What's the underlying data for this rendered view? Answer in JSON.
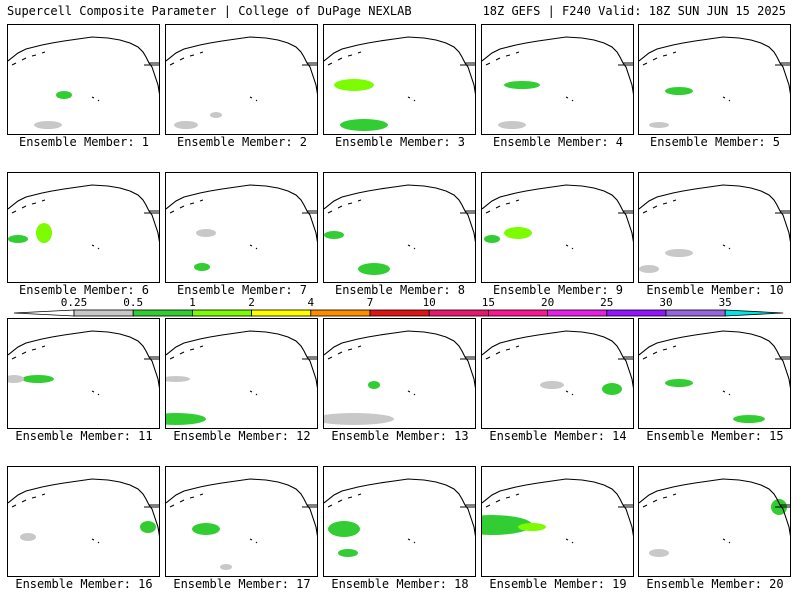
{
  "header": {
    "title": "Supercell Composite Parameter | College of DuPage NEXLAB",
    "valid": "18Z GEFS | F240 Valid: 18Z SUN JUN 15 2025"
  },
  "legend": {
    "ticks": [
      "0.25",
      "0.5",
      "1",
      "2",
      "4",
      "7",
      "10",
      "15",
      "20",
      "25",
      "30",
      "35"
    ],
    "colors": [
      "#c8c8c8",
      "#32cd32",
      "#7cfc00",
      "#ffff00",
      "#ff8c00",
      "#dc1414",
      "#e6196e",
      "#ff1493",
      "#e61ee6",
      "#9314ff",
      "#9664dc",
      "#00e6e6"
    ]
  },
  "members": [
    {
      "label": "Ensemble Member: 1"
    },
    {
      "label": "Ensemble Member: 2"
    },
    {
      "label": "Ensemble Member: 3"
    },
    {
      "label": "Ensemble Member: 4"
    },
    {
      "label": "Ensemble Member: 5"
    },
    {
      "label": "Ensemble Member: 6"
    },
    {
      "label": "Ensemble Member: 7"
    },
    {
      "label": "Ensemble Member: 8"
    },
    {
      "label": "Ensemble Member: 9"
    },
    {
      "label": "Ensemble Member: 10"
    },
    {
      "label": "Ensemble Member: 11"
    },
    {
      "label": "Ensemble Member: 12"
    },
    {
      "label": "Ensemble Member: 13"
    },
    {
      "label": "Ensemble Member: 14"
    },
    {
      "label": "Ensemble Member: 15"
    },
    {
      "label": "Ensemble Member: 16"
    },
    {
      "label": "Ensemble Member: 17"
    },
    {
      "label": "Ensemble Member: 18"
    },
    {
      "label": "Ensemble Member: 19"
    },
    {
      "label": "Ensemble Member: 20"
    }
  ]
}
